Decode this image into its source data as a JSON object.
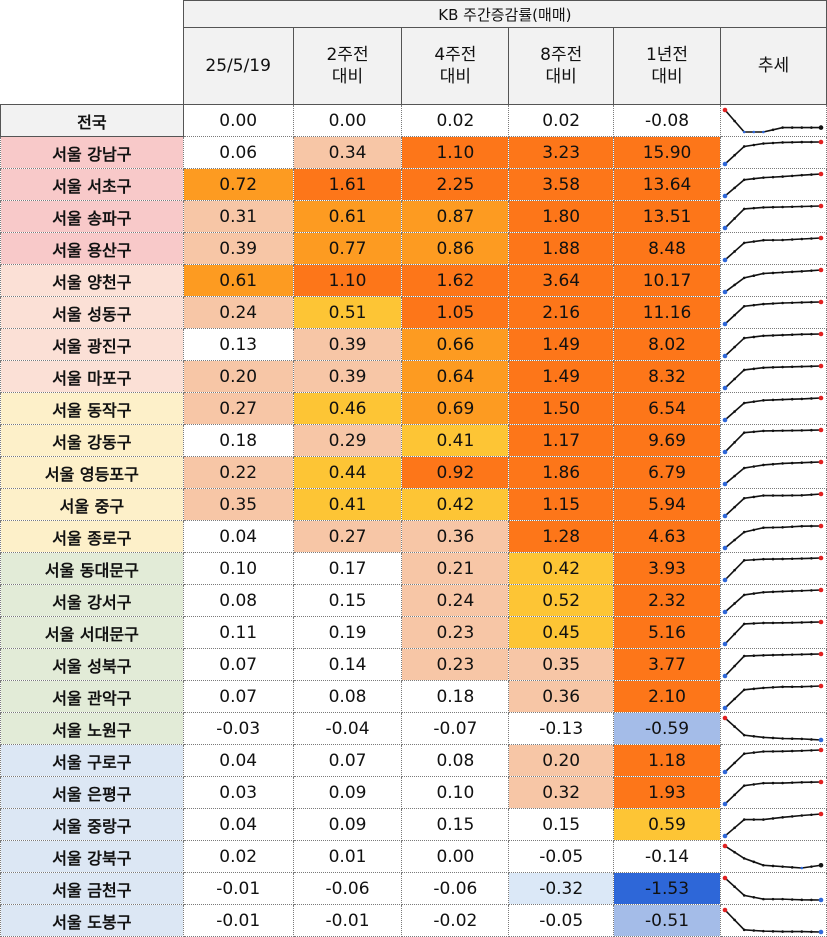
{
  "header": {
    "title": "KB 주간증감률(매매)",
    "columns": [
      "25/5/19",
      "2주전\n대비",
      "4주전\n대비",
      "8주전\n대비",
      "1년전\n대비",
      "추세"
    ]
  },
  "colors": {
    "pink_group": "#f8c9c9",
    "salmon_group": "#fbe0d6",
    "yellow_group": "#fdf0c9",
    "green_group": "#e2ebd7",
    "blue_group": "#dce7f4",
    "heat_light": "#f7c6a6",
    "heat_yellow": "#fdc535",
    "heat_orange": "#fd9b21",
    "heat_strong": "#fd7619",
    "neg_light": "#dbe8f7",
    "neg_mid": "#a4bce8",
    "neg_strong": "#2e67d8"
  },
  "rows": [
    {
      "label": "전국",
      "group": "national",
      "v": [
        "0.00",
        "0.00",
        "0.02",
        "0.02",
        "-0.08"
      ]
    },
    {
      "label": "서울 강남구",
      "group": "pink",
      "v": [
        "0.06",
        "0.34",
        "1.10",
        "3.23",
        "15.90"
      ]
    },
    {
      "label": "서울 서초구",
      "group": "pink",
      "v": [
        "0.72",
        "1.61",
        "2.25",
        "3.58",
        "13.64"
      ]
    },
    {
      "label": "서울 송파구",
      "group": "pink",
      "v": [
        "0.31",
        "0.61",
        "0.87",
        "1.80",
        "13.51"
      ]
    },
    {
      "label": "서울 용산구",
      "group": "pink",
      "v": [
        "0.39",
        "0.77",
        "0.86",
        "1.88",
        "8.48"
      ]
    },
    {
      "label": "서울 양천구",
      "group": "salmon",
      "v": [
        "0.61",
        "1.10",
        "1.62",
        "3.64",
        "10.17"
      ]
    },
    {
      "label": "서울 성동구",
      "group": "salmon",
      "v": [
        "0.24",
        "0.51",
        "1.05",
        "2.16",
        "11.16"
      ]
    },
    {
      "label": "서울 광진구",
      "group": "salmon",
      "v": [
        "0.13",
        "0.39",
        "0.66",
        "1.49",
        "8.02"
      ]
    },
    {
      "label": "서울 마포구",
      "group": "salmon",
      "v": [
        "0.20",
        "0.39",
        "0.64",
        "1.49",
        "8.32"
      ]
    },
    {
      "label": "서울 동작구",
      "group": "yellow",
      "v": [
        "0.27",
        "0.46",
        "0.69",
        "1.50",
        "6.54"
      ]
    },
    {
      "label": "서울 강동구",
      "group": "yellow",
      "v": [
        "0.18",
        "0.29",
        "0.41",
        "1.17",
        "9.69"
      ]
    },
    {
      "label": "서울 영등포구",
      "group": "yellow",
      "v": [
        "0.22",
        "0.44",
        "0.92",
        "1.86",
        "6.79"
      ]
    },
    {
      "label": "서울 중구",
      "group": "yellow",
      "v": [
        "0.35",
        "0.41",
        "0.42",
        "1.15",
        "5.94"
      ]
    },
    {
      "label": "서울 종로구",
      "group": "yellow",
      "v": [
        "0.04",
        "0.27",
        "0.36",
        "1.28",
        "4.63"
      ]
    },
    {
      "label": "서울 동대문구",
      "group": "green",
      "v": [
        "0.10",
        "0.17",
        "0.21",
        "0.42",
        "3.93"
      ]
    },
    {
      "label": "서울 강서구",
      "group": "green",
      "v": [
        "0.08",
        "0.15",
        "0.24",
        "0.52",
        "2.32"
      ]
    },
    {
      "label": "서울 서대문구",
      "group": "green",
      "v": [
        "0.11",
        "0.19",
        "0.23",
        "0.45",
        "5.16"
      ]
    },
    {
      "label": "서울 성북구",
      "group": "green",
      "v": [
        "0.07",
        "0.14",
        "0.23",
        "0.35",
        "3.77"
      ]
    },
    {
      "label": "서울 관악구",
      "group": "green",
      "v": [
        "0.07",
        "0.08",
        "0.18",
        "0.36",
        "2.10"
      ]
    },
    {
      "label": "서울 노원구",
      "group": "green",
      "v": [
        "-0.03",
        "-0.04",
        "-0.07",
        "-0.13",
        "-0.59"
      ]
    },
    {
      "label": "서울 구로구",
      "group": "blue",
      "v": [
        "0.04",
        "0.07",
        "0.08",
        "0.20",
        "1.18"
      ]
    },
    {
      "label": "서울 은평구",
      "group": "blue",
      "v": [
        "0.03",
        "0.09",
        "0.10",
        "0.32",
        "1.93"
      ]
    },
    {
      "label": "서울 중랑구",
      "group": "blue",
      "v": [
        "0.04",
        "0.09",
        "0.15",
        "0.15",
        "0.59"
      ]
    },
    {
      "label": "서울 강북구",
      "group": "blue",
      "v": [
        "0.02",
        "0.01",
        "0.00",
        "-0.05",
        "-0.14"
      ]
    },
    {
      "label": "서울 금천구",
      "group": "blue",
      "v": [
        "-0.01",
        "-0.06",
        "-0.06",
        "-0.32",
        "-1.53"
      ]
    },
    {
      "label": "서울 도봉구",
      "group": "blue",
      "v": [
        "-0.01",
        "-0.01",
        "-0.02",
        "-0.05",
        "-0.51"
      ]
    }
  ],
  "chart_data": {
    "type": "table",
    "title": "KB 주간증감률(매매)",
    "columns": [
      "25/5/19",
      "2주전 대비",
      "4주전 대비",
      "8주전 대비",
      "1년전 대비",
      "추세"
    ],
    "categories": [
      "전국",
      "서울 강남구",
      "서울 서초구",
      "서울 송파구",
      "서울 용산구",
      "서울 양천구",
      "서울 성동구",
      "서울 광진구",
      "서울 마포구",
      "서울 동작구",
      "서울 강동구",
      "서울 영등포구",
      "서울 중구",
      "서울 종로구",
      "서울 동대문구",
      "서울 강서구",
      "서울 서대문구",
      "서울 성북구",
      "서울 관악구",
      "서울 노원구",
      "서울 구로구",
      "서울 은평구",
      "서울 중랑구",
      "서울 강북구",
      "서울 금천구",
      "서울 도봉구"
    ],
    "series": [
      {
        "name": "25/5/19",
        "values": [
          0.0,
          0.06,
          0.72,
          0.31,
          0.39,
          0.61,
          0.24,
          0.13,
          0.2,
          0.27,
          0.18,
          0.22,
          0.35,
          0.04,
          0.1,
          0.08,
          0.11,
          0.07,
          0.07,
          -0.03,
          0.04,
          0.03,
          0.04,
          0.02,
          -0.01,
          -0.01
        ]
      },
      {
        "name": "2주전 대비",
        "values": [
          0.0,
          0.34,
          1.61,
          0.61,
          0.77,
          1.1,
          0.51,
          0.39,
          0.39,
          0.46,
          0.29,
          0.44,
          0.41,
          0.27,
          0.17,
          0.15,
          0.19,
          0.14,
          0.08,
          -0.04,
          0.07,
          0.09,
          0.09,
          0.01,
          -0.06,
          -0.01
        ]
      },
      {
        "name": "4주전 대비",
        "values": [
          0.02,
          1.1,
          2.25,
          0.87,
          0.86,
          1.62,
          1.05,
          0.66,
          0.64,
          0.69,
          0.41,
          0.92,
          0.42,
          0.36,
          0.21,
          0.24,
          0.23,
          0.23,
          0.18,
          -0.07,
          0.08,
          0.1,
          0.15,
          0.0,
          -0.06,
          -0.02
        ]
      },
      {
        "name": "8주전 대비",
        "values": [
          0.02,
          3.23,
          3.58,
          1.8,
          1.88,
          3.64,
          2.16,
          1.49,
          1.49,
          1.5,
          1.17,
          1.86,
          1.15,
          1.28,
          0.42,
          0.52,
          0.45,
          0.35,
          0.36,
          -0.13,
          0.2,
          0.32,
          0.15,
          -0.05,
          -0.32,
          -0.05
        ]
      },
      {
        "name": "1년전 대비",
        "values": [
          -0.08,
          15.9,
          13.64,
          13.51,
          8.48,
          10.17,
          11.16,
          8.02,
          8.32,
          6.54,
          9.69,
          6.79,
          5.94,
          4.63,
          3.93,
          2.32,
          5.16,
          3.77,
          2.1,
          -0.59,
          1.18,
          1.93,
          0.59,
          -0.14,
          -1.53,
          -0.51
        ]
      }
    ]
  }
}
